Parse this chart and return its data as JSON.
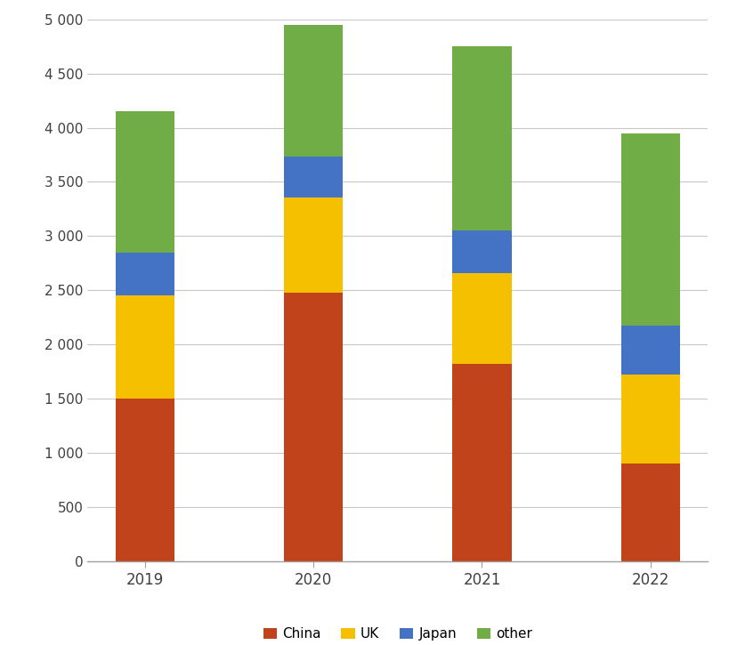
{
  "years": [
    "2019",
    "2020",
    "2021",
    "2022"
  ],
  "series": {
    "China": [
      1500,
      2480,
      1820,
      900
    ],
    "UK": [
      950,
      880,
      840,
      820
    ],
    "Japan": [
      400,
      370,
      390,
      450
    ],
    "other": [
      1300,
      1220,
      1700,
      1780
    ]
  },
  "colors": {
    "China": "#C0431B",
    "UK": "#F5C000",
    "Japan": "#4472C4",
    "other": "#70AD47"
  },
  "ylim": [
    0,
    5000
  ],
  "yticks": [
    0,
    500,
    1000,
    1500,
    2000,
    2500,
    3000,
    3500,
    4000,
    4500,
    5000
  ],
  "bar_width": 0.35,
  "legend_order": [
    "China",
    "UK",
    "Japan",
    "other"
  ],
  "background_color": "#FFFFFF",
  "grid_color": "#C8C8C8"
}
